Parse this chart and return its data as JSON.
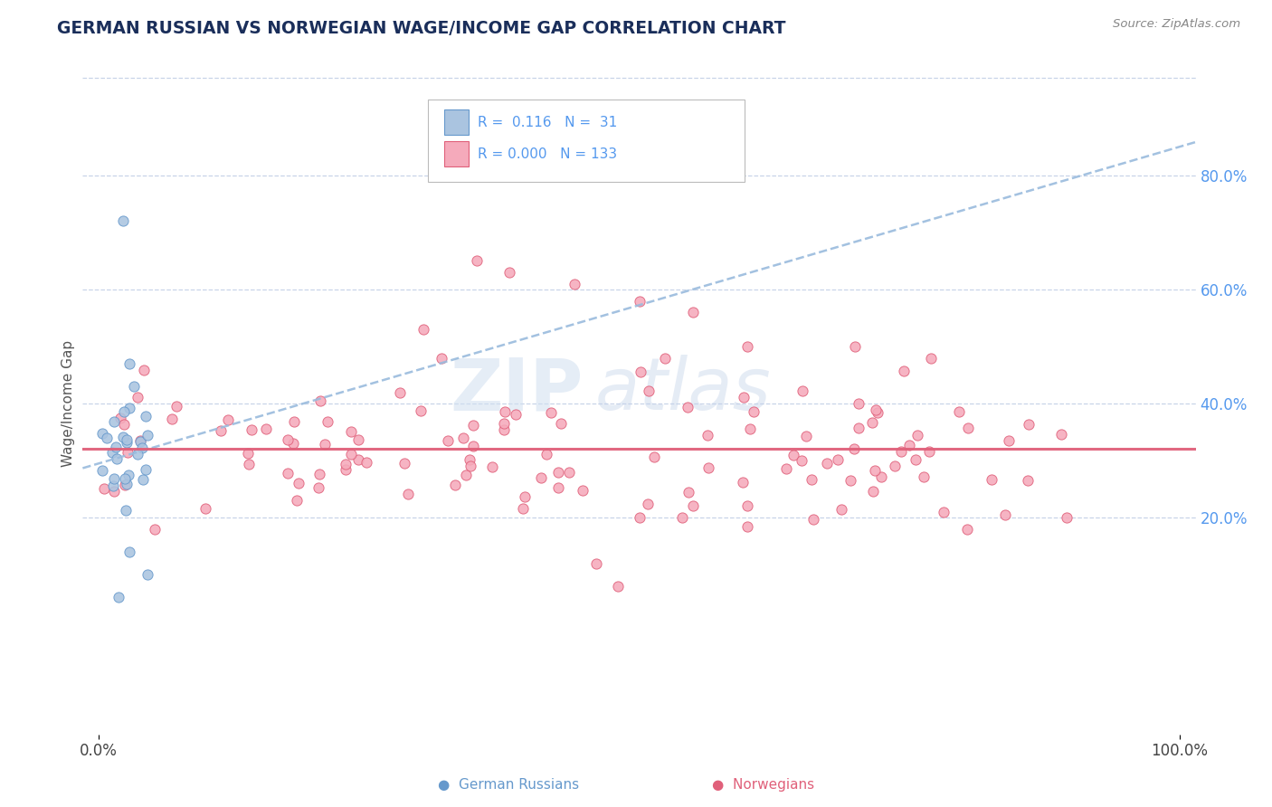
{
  "title": "GERMAN RUSSIAN VS NORWEGIAN WAGE/INCOME GAP CORRELATION CHART",
  "source_text": "Source: ZipAtlas.com",
  "ylabel": "Wage/Income Gap",
  "background_color": "#ffffff",
  "grid_color": "#c8d4e8",
  "title_color": "#1a2e5a",
  "watermark_text1": "ZIP",
  "watermark_text2": "atlas",
  "legend_R1": "0.116",
  "legend_N1": "31",
  "legend_R2": "0.000",
  "legend_N2": "133",
  "series1_fill": "#aac4e0",
  "series2_fill": "#f5aabb",
  "series1_edge": "#6699cc",
  "series2_edge": "#e0607a",
  "trend1_color": "#99bbdd",
  "trend2_color": "#e0607a",
  "right_tick_color": "#5599ee",
  "y_min": -0.18,
  "y_max": 0.98,
  "x_min": -0.015,
  "x_max": 1.015,
  "trend1_x0": 0.0,
  "trend1_y0": 0.295,
  "trend1_x1": 1.0,
  "trend1_y1": 0.85,
  "trend2_y": 0.32
}
